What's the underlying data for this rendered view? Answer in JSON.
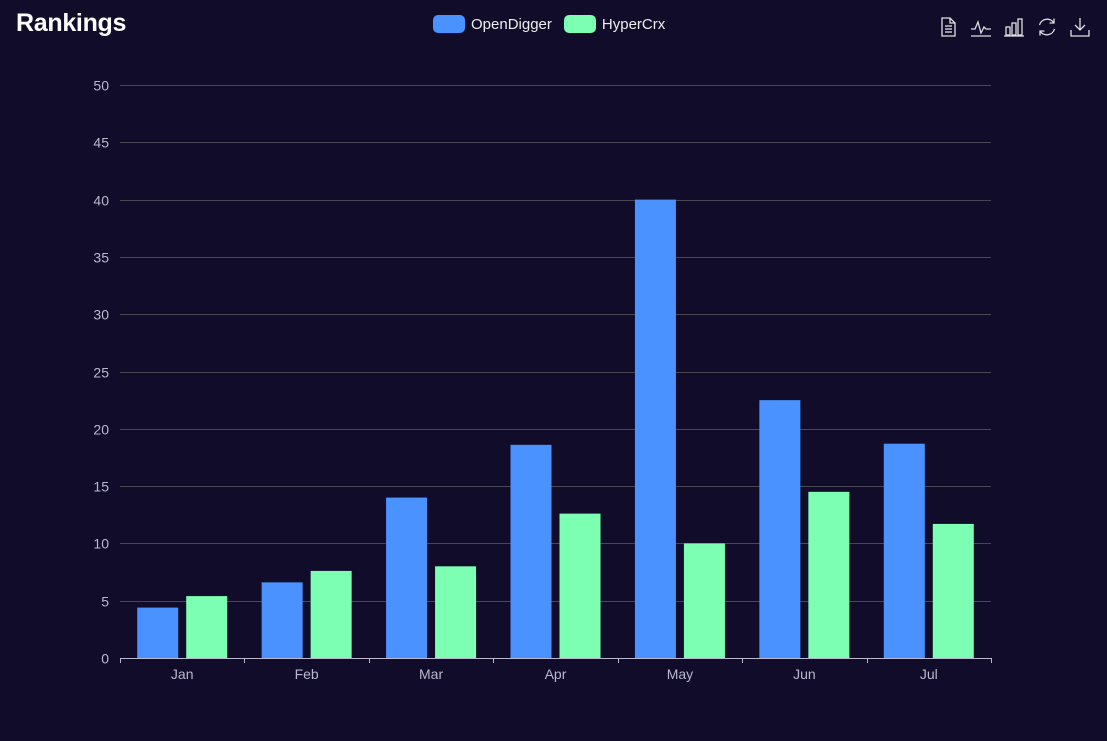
{
  "header": {
    "title": "Rankings"
  },
  "legend": {
    "items": [
      {
        "label": "OpenDigger",
        "color": "#4992ff"
      },
      {
        "label": "HyperCrx",
        "color": "#7cffb2"
      }
    ]
  },
  "toolbox": {
    "icons": [
      "data-view-icon",
      "line-chart-icon",
      "bar-chart-icon",
      "restore-icon",
      "download-icon"
    ]
  },
  "colors": {
    "background": "#100c2a",
    "grid": "#484753",
    "axis": "#b9b8ce",
    "icon": "#e0e0e0"
  },
  "chart_data": {
    "type": "bar",
    "title": "Rankings",
    "categories": [
      "Jan",
      "Feb",
      "Mar",
      "Apr",
      "May",
      "Jun",
      "Jul"
    ],
    "series": [
      {
        "name": "OpenDigger",
        "values": [
          4.4,
          6.6,
          14.0,
          18.6,
          40.0,
          22.5,
          18.7
        ]
      },
      {
        "name": "HyperCrx",
        "values": [
          5.4,
          7.6,
          8.0,
          12.6,
          10.0,
          14.5,
          11.7
        ]
      }
    ],
    "ylim": [
      0,
      50
    ],
    "yticks": [
      0,
      5,
      10,
      15,
      20,
      25,
      30,
      35,
      40,
      45,
      50
    ],
    "xlabel": "",
    "ylabel": "",
    "grid": true,
    "legend_position": "top-center"
  }
}
